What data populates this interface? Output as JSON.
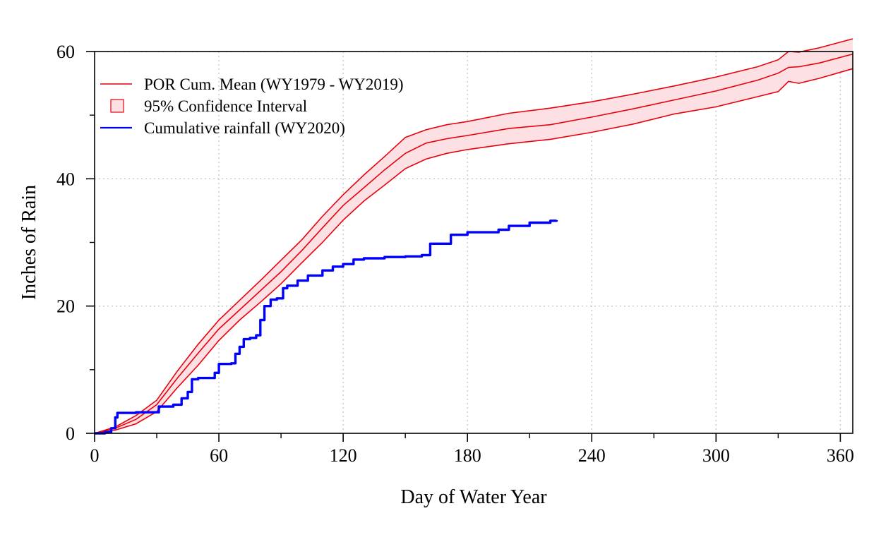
{
  "chart_data": {
    "type": "line",
    "title": "",
    "xlabel": "Day of Water Year",
    "ylabel": "Inches of Rain",
    "xlim": [
      0,
      366
    ],
    "ylim": [
      0,
      60
    ],
    "x_ticks": [
      0,
      60,
      120,
      180,
      240,
      300,
      360
    ],
    "x_minor_ticks": [
      30,
      90,
      150,
      210,
      270,
      330
    ],
    "y_ticks": [
      0,
      20,
      40,
      60
    ],
    "y_minor_ticks": [
      10,
      30,
      50
    ],
    "grid": true,
    "legend_position": "top-left",
    "legend": [
      {
        "label": "POR Cum. Mean (WY1979 - WY2019)",
        "kind": "line",
        "color": "#e8000b"
      },
      {
        "label": "95% Confidence Interval",
        "kind": "box",
        "color": "#e8000b",
        "fill": "#fde0e3"
      },
      {
        "label": "Cumulative rainfall (WY2020)",
        "kind": "line",
        "color": "#0000ff"
      }
    ],
    "series": [
      {
        "name": "POR Cum. Mean (WY1979 - WY2019)",
        "color": "#e8000b",
        "x": [
          0,
          10,
          20,
          30,
          40,
          50,
          60,
          70,
          80,
          90,
          100,
          110,
          120,
          130,
          140,
          150,
          160,
          170,
          180,
          200,
          220,
          240,
          260,
          280,
          300,
          320,
          330,
          335,
          340,
          350,
          366
        ],
        "y": [
          0,
          0.8,
          2.2,
          4.5,
          8.7,
          12.6,
          16.4,
          19.4,
          22.4,
          25.4,
          28.7,
          32.3,
          35.8,
          38.6,
          41.4,
          44.0,
          45.6,
          46.3,
          46.8,
          47.9,
          48.5,
          49.7,
          51.0,
          52.4,
          53.8,
          55.5,
          56.6,
          57.5,
          57.6,
          58.2,
          59.6
        ]
      },
      {
        "name": "95% CI upper",
        "color": "#e8000b",
        "x": [
          0,
          10,
          20,
          30,
          40,
          50,
          60,
          70,
          80,
          90,
          100,
          110,
          120,
          130,
          140,
          150,
          160,
          170,
          180,
          200,
          220,
          240,
          260,
          280,
          300,
          320,
          330,
          335,
          340,
          350,
          366
        ],
        "y": [
          0,
          1.0,
          2.8,
          5.2,
          9.8,
          14.0,
          17.8,
          20.9,
          24.0,
          27.2,
          30.4,
          34.1,
          37.5,
          40.6,
          43.5,
          46.5,
          47.7,
          48.5,
          49.0,
          50.3,
          51.1,
          52.1,
          53.3,
          54.6,
          56.0,
          57.6,
          58.7,
          60.0,
          59.9,
          60.6,
          62.0
        ]
      },
      {
        "name": "95% CI lower",
        "color": "#e8000b",
        "x": [
          0,
          10,
          20,
          30,
          40,
          50,
          60,
          70,
          80,
          90,
          100,
          110,
          120,
          130,
          140,
          150,
          160,
          170,
          180,
          200,
          220,
          240,
          260,
          280,
          300,
          320,
          330,
          335,
          340,
          350,
          366
        ],
        "y": [
          0,
          0.5,
          1.5,
          3.4,
          7.2,
          10.7,
          14.6,
          17.8,
          20.6,
          23.5,
          26.8,
          30.0,
          33.5,
          36.5,
          39.0,
          41.6,
          43.1,
          44.0,
          44.6,
          45.5,
          46.2,
          47.3,
          48.6,
          50.2,
          51.3,
          52.9,
          53.7,
          55.3,
          55.0,
          55.8,
          57.3
        ]
      },
      {
        "name": "Cumulative rainfall (WY2020)",
        "color": "#0000ff",
        "x": [
          0,
          5,
          8,
          10,
          11,
          20,
          29,
          31,
          38,
          42,
          45,
          47,
          50,
          58,
          60,
          66,
          68,
          70,
          72,
          75,
          78,
          80,
          82,
          85,
          88,
          91,
          93,
          98,
          103,
          110,
          115,
          120,
          125,
          130,
          140,
          150,
          158,
          162,
          172,
          180,
          195,
          200,
          210,
          220,
          223
        ],
        "y": [
          0,
          0.2,
          0.8,
          2.5,
          3.2,
          3.3,
          3.3,
          4.2,
          4.5,
          5.5,
          6.5,
          8.5,
          8.7,
          9.5,
          10.9,
          11.0,
          12.5,
          13.6,
          14.8,
          15.0,
          15.4,
          17.8,
          20.0,
          21.0,
          21.2,
          22.8,
          23.2,
          24.0,
          24.8,
          25.6,
          26.2,
          26.6,
          27.3,
          27.5,
          27.7,
          27.8,
          28.0,
          29.8,
          31.2,
          31.6,
          32.0,
          32.6,
          33.1,
          33.4,
          33.5
        ]
      }
    ]
  }
}
